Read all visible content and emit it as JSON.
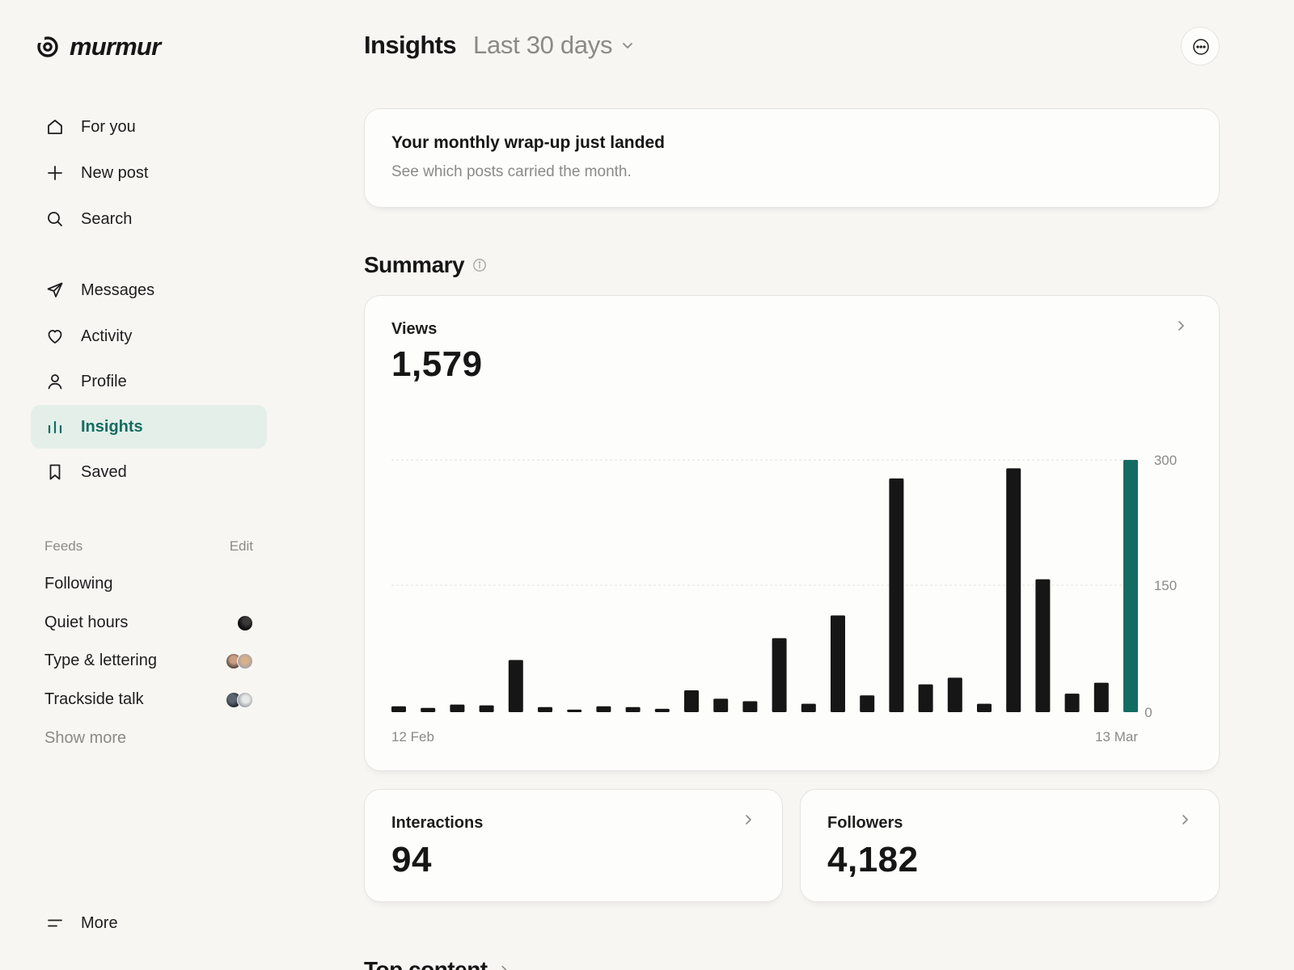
{
  "app": {
    "name": "murmur"
  },
  "sidebar": {
    "nav": [
      {
        "label": "For you",
        "icon": "home-icon"
      },
      {
        "label": "New post",
        "icon": "plus-icon"
      },
      {
        "label": "Search",
        "icon": "search-icon"
      },
      {
        "label": "Messages",
        "icon": "send-icon"
      },
      {
        "label": "Activity",
        "icon": "heart-icon"
      },
      {
        "label": "Profile",
        "icon": "user-icon"
      },
      {
        "label": "Insights",
        "icon": "bar-chart-icon",
        "active": true
      },
      {
        "label": "Saved",
        "icon": "bookmark-icon"
      }
    ],
    "feeds_title": "Feeds",
    "feeds_edit": "Edit",
    "feeds": [
      {
        "label": "Following",
        "avatars": 0
      },
      {
        "label": "Quiet hours",
        "avatars": 1
      },
      {
        "label": "Type & lettering",
        "avatars": 2
      },
      {
        "label": "Trackside talk",
        "avatars": 2
      }
    ],
    "show_more": "Show more",
    "more": {
      "label": "More",
      "icon": "menu-icon"
    }
  },
  "header": {
    "title": "Insights",
    "range": "Last 30 days",
    "range_icon": "chevron-down-icon",
    "options_icon": "more-options-icon"
  },
  "banner": {
    "title": "Your monthly wrap-up just landed",
    "subtitle": "See which posts carried the month."
  },
  "summary": {
    "title": "Summary",
    "info_icon": "info-icon",
    "views": {
      "label": "Views",
      "value": "1,579"
    },
    "interactions": {
      "label": "Interactions",
      "value": "94"
    },
    "followers": {
      "label": "Followers",
      "value": "4,182"
    }
  },
  "top_content": {
    "title": "Top content"
  },
  "colors": {
    "accent": "#136c61",
    "accent_bg": "#e4efea",
    "bar": "#161616",
    "muted": "#8a8a86",
    "background": "#f7f6f3",
    "card": "#fdfdfc"
  },
  "chart_data": {
    "type": "bar",
    "x_start_label": "12 Feb",
    "x_end_label": "13 Mar",
    "values": [
      7,
      5,
      9,
      8,
      62,
      6,
      3,
      7,
      6,
      4,
      26,
      16,
      13,
      88,
      10,
      115,
      20,
      278,
      33,
      41,
      10,
      290,
      158,
      22,
      35,
      300
    ],
    "highlight_index": 25,
    "highlight_color": "#136c61",
    "bar_color": "#161616",
    "y_ticks": [
      0,
      150,
      300
    ],
    "ylim": [
      0,
      300
    ],
    "grid": true
  }
}
